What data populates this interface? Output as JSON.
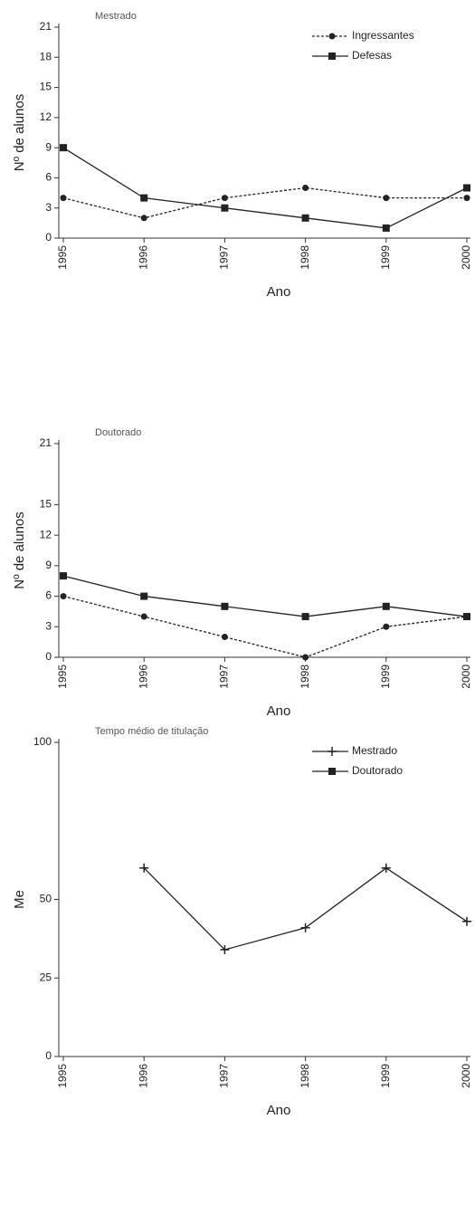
{
  "chart_data": [
    {
      "type": "line",
      "title": "Mestrado",
      "x_label": "Ano",
      "y_label": "Nº de alunos",
      "categories": [
        "1995",
        "1996",
        "1997",
        "1998",
        "1999",
        "2000"
      ],
      "series": [
        {
          "name": "Ingressantes",
          "color": "#222222",
          "linestyle": "dashed",
          "marker": "circle",
          "values": [
            4,
            2,
            4,
            5,
            4,
            4
          ]
        },
        {
          "name": "Defesas",
          "color": "#222222",
          "linestyle": "solid",
          "marker": "square",
          "values": [
            9,
            4,
            3,
            2,
            1,
            5
          ]
        }
      ],
      "ylim": [
        0,
        21
      ],
      "yticks": [
        0,
        3,
        6,
        9,
        12,
        15,
        18,
        21
      ],
      "legend": "upper right"
    },
    {
      "type": "line",
      "title": "Doutorado",
      "x_label": "Ano",
      "y_label": "Nº de alunos",
      "categories": [
        "1995",
        "1996",
        "1997",
        "1998",
        "1999",
        "2000"
      ],
      "series": [
        {
          "color": "#222222",
          "linestyle": "dashed",
          "marker": "circle",
          "values": [
            6,
            4,
            2,
            0,
            3,
            4
          ]
        },
        {
          "color": "#222222",
          "linestyle": "solid",
          "marker": "square",
          "values": [
            8,
            6,
            5,
            4,
            5,
            4
          ]
        }
      ],
      "ylim": [
        0,
        21
      ],
      "yticks": [
        0,
        3,
        6,
        9,
        12,
        15,
        21
      ]
    },
    {
      "type": "line",
      "title": "Tempo médio de titulação",
      "x_label": "Ano",
      "y_label": "Me",
      "categories": [
        "1995",
        "1996",
        "1997",
        "1998",
        "1999",
        "2000"
      ],
      "series": [
        {
          "name": "Mestrado",
          "color": "#222222",
          "linestyle": "solid",
          "marker": "plus",
          "values": [
            null,
            60,
            34,
            41,
            60,
            43
          ]
        },
        {
          "name": "Doutorado",
          "color": "#222222",
          "linestyle": "solid",
          "marker": "square",
          "values": [
            null,
            null,
            null,
            null,
            null,
            null
          ]
        }
      ],
      "ylim": [
        0,
        100
      ],
      "yticks": [
        0,
        25,
        50,
        100
      ],
      "legend": "upper right"
    }
  ]
}
